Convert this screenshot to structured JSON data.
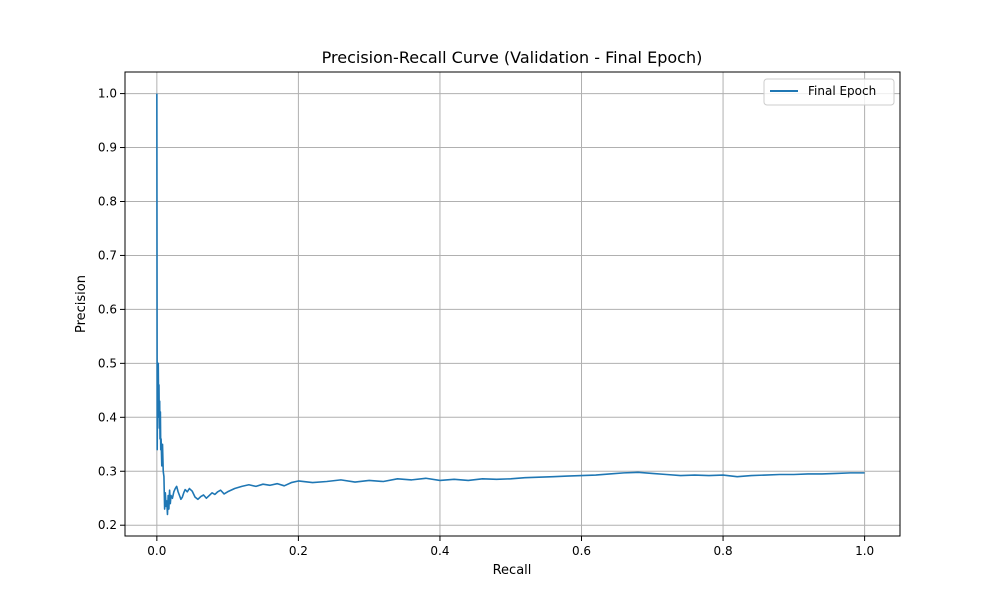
{
  "chart_data": {
    "type": "line",
    "title": "Precision-Recall Curve (Validation - Final Epoch)",
    "xlabel": "Recall",
    "ylabel": "Precision",
    "xlim": [
      -0.045,
      1.05
    ],
    "ylim": [
      0.18,
      1.04
    ],
    "xticks": [
      0.0,
      0.2,
      0.4,
      0.6,
      0.8,
      1.0
    ],
    "xtick_labels": [
      "0.0",
      "0.2",
      "0.4",
      "0.6",
      "0.8",
      "1.0"
    ],
    "yticks": [
      0.2,
      0.3,
      0.4,
      0.5,
      0.6,
      0.7,
      0.8,
      0.9,
      1.0
    ],
    "ytick_labels": [
      "0.2",
      "0.3",
      "0.4",
      "0.5",
      "0.6",
      "0.7",
      "0.8",
      "0.9",
      "1.0"
    ],
    "grid": true,
    "legend_position": "top-right",
    "series": [
      {
        "name": "Final Epoch",
        "color": "#1f77b4",
        "x": [
          0.0,
          0.0005,
          0.001,
          0.0015,
          0.002,
          0.0025,
          0.003,
          0.0035,
          0.004,
          0.0045,
          0.005,
          0.0055,
          0.006,
          0.007,
          0.008,
          0.009,
          0.01,
          0.011,
          0.012,
          0.013,
          0.014,
          0.015,
          0.016,
          0.017,
          0.018,
          0.019,
          0.02,
          0.022,
          0.024,
          0.026,
          0.028,
          0.03,
          0.032,
          0.034,
          0.036,
          0.038,
          0.04,
          0.043,
          0.046,
          0.05,
          0.054,
          0.058,
          0.062,
          0.066,
          0.07,
          0.074,
          0.078,
          0.082,
          0.086,
          0.09,
          0.095,
          0.1,
          0.11,
          0.12,
          0.13,
          0.14,
          0.15,
          0.16,
          0.17,
          0.18,
          0.19,
          0.2,
          0.22,
          0.24,
          0.26,
          0.28,
          0.3,
          0.32,
          0.34,
          0.36,
          0.38,
          0.4,
          0.42,
          0.44,
          0.46,
          0.48,
          0.5,
          0.52,
          0.54,
          0.56,
          0.58,
          0.6,
          0.62,
          0.64,
          0.66,
          0.68,
          0.7,
          0.72,
          0.74,
          0.76,
          0.78,
          0.8,
          0.82,
          0.84,
          0.86,
          0.88,
          0.9,
          0.92,
          0.94,
          0.96,
          0.98,
          1.0
        ],
        "y": [
          1.0,
          0.34,
          0.45,
          0.4,
          0.5,
          0.42,
          0.46,
          0.38,
          0.43,
          0.36,
          0.41,
          0.34,
          0.36,
          0.31,
          0.35,
          0.3,
          0.29,
          0.23,
          0.26,
          0.235,
          0.245,
          0.22,
          0.255,
          0.23,
          0.265,
          0.24,
          0.255,
          0.25,
          0.262,
          0.268,
          0.272,
          0.262,
          0.255,
          0.248,
          0.252,
          0.26,
          0.266,
          0.262,
          0.268,
          0.263,
          0.252,
          0.248,
          0.253,
          0.256,
          0.25,
          0.255,
          0.26,
          0.257,
          0.262,
          0.265,
          0.258,
          0.262,
          0.268,
          0.272,
          0.275,
          0.272,
          0.276,
          0.274,
          0.277,
          0.273,
          0.279,
          0.282,
          0.279,
          0.281,
          0.284,
          0.28,
          0.283,
          0.281,
          0.286,
          0.284,
          0.287,
          0.283,
          0.285,
          0.283,
          0.286,
          0.285,
          0.286,
          0.288,
          0.289,
          0.29,
          0.291,
          0.292,
          0.293,
          0.295,
          0.297,
          0.298,
          0.296,
          0.294,
          0.292,
          0.293,
          0.292,
          0.293,
          0.29,
          0.292,
          0.293,
          0.294,
          0.294,
          0.295,
          0.295,
          0.296,
          0.297,
          0.297
        ]
      }
    ]
  }
}
